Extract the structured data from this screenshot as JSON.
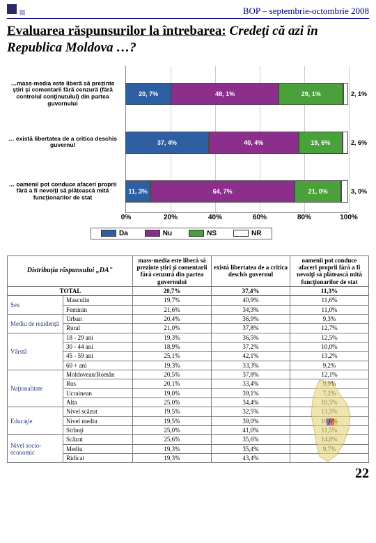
{
  "header": {
    "text": "BOP  – septembrie-octombrie  2008"
  },
  "title": {
    "lead": "Evaluarea răspunsurilor la întrebarea:",
    "question": "Credeţi că azi în Republica Moldova …?"
  },
  "chart": {
    "type": "stacked-horizontal-bar",
    "x_axis": {
      "min": 0,
      "max": 100,
      "ticks": [
        "0%",
        "20%",
        "40%",
        "60%",
        "80%",
        "100%"
      ]
    },
    "colors": {
      "da": "#2f5fa3",
      "nu": "#8c2f8c",
      "ns": "#4aa03a",
      "nr": "#ffffff",
      "border": "#4a4a4a"
    },
    "legend": [
      {
        "key": "da",
        "label": "Da"
      },
      {
        "key": "nu",
        "label": "Nu"
      },
      {
        "key": "ns",
        "label": "NS"
      },
      {
        "key": "nr",
        "label": "NR"
      }
    ],
    "rows": [
      {
        "label": "…mass-media este liberă să prezinte ştiri şi comentarii fără cenzură (fără controlul conţinutului) din partea guvernului",
        "segments": [
          {
            "key": "da",
            "value": 20.7,
            "text": "20, 7%"
          },
          {
            "key": "nu",
            "value": 48.1,
            "text": "48, 1%"
          },
          {
            "key": "ns",
            "value": 29.1,
            "text": "29, 1%"
          },
          {
            "key": "nr",
            "value": 2.1,
            "text": "2, 1%",
            "outside": true
          }
        ]
      },
      {
        "label": "… există libertatea de a critica deschis guvernul",
        "segments": [
          {
            "key": "da",
            "value": 37.4,
            "text": "37, 4%"
          },
          {
            "key": "nu",
            "value": 40.4,
            "text": "40, 4%"
          },
          {
            "key": "ns",
            "value": 19.6,
            "text": "19, 6%"
          },
          {
            "key": "nr",
            "value": 2.6,
            "text": "2, 6%",
            "outside": true
          }
        ]
      },
      {
        "label": "… oamenii pot conduce afaceri proprii fără a fi nevoiţi să plătească mită funcţionarilor de stat",
        "segments": [
          {
            "key": "da",
            "value": 11.3,
            "text": "11, 3%"
          },
          {
            "key": "nu",
            "value": 64.7,
            "text": "64, 7%"
          },
          {
            "key": "ns",
            "value": 21.0,
            "text": "21, 0%"
          },
          {
            "key": "nr",
            "value": 3.0,
            "text": "3, 0%",
            "outside": true
          }
        ]
      }
    ]
  },
  "table": {
    "dist_title": "Distribuţia răspunsului „DA\"",
    "col_headers": [
      "mass-media este liberă să prezinte ştiri şi comentarii fără cenzură din partea guvernului",
      "există libertatea de a critica deschis guvernul",
      "oamenii pot conduce afaceri proprii fără a fi nevoiţi să plătească mită funcţionarilor de stat"
    ],
    "total_label": "TOTAL",
    "total": [
      "20,7%",
      "37,4%",
      "11,3%"
    ],
    "groups": [
      {
        "cat": "Sex",
        "rows": [
          {
            "h": "Masculin",
            "v": [
              "19,7%",
              "40,9%",
              "11,6%"
            ]
          },
          {
            "h": "Feminin",
            "v": [
              "21,6%",
              "34,3%",
              "11,0%"
            ]
          }
        ]
      },
      {
        "cat": "Mediu de rezidenţă",
        "rows": [
          {
            "h": "Urban",
            "v": [
              "20,4%",
              "36,9%",
              "9,3%"
            ]
          },
          {
            "h": "Rural",
            "v": [
              "21,0%",
              "37,8%",
              "12,7%"
            ]
          }
        ]
      },
      {
        "cat": "Vârstă",
        "rows": [
          {
            "h": "18 - 29 ani",
            "v": [
              "19,3%",
              "36,5%",
              "12,5%"
            ]
          },
          {
            "h": "30 - 44 ani",
            "v": [
              "18,9%",
              "37,2%",
              "10,0%"
            ]
          },
          {
            "h": "45 - 59 ani",
            "v": [
              "25,1%",
              "42,1%",
              "13,2%"
            ]
          },
          {
            "h": "60 + ani",
            "v": [
              "19,3%",
              "33,3%",
              "9,2%"
            ]
          }
        ]
      },
      {
        "cat": "Naţionalitate",
        "rows": [
          {
            "h": "Moldovean/Român",
            "v": [
              "20,5%",
              "37,8%",
              "12,1%"
            ]
          },
          {
            "h": "Rus",
            "v": [
              "20,1%",
              "33,4%",
              "9,9%"
            ]
          },
          {
            "h": "Ucrainean",
            "v": [
              "19,0%",
              "39,1%",
              "7,2%"
            ]
          },
          {
            "h": "Alta",
            "v": [
              "25,0%",
              "34,4%",
              "10,5%"
            ]
          }
        ]
      },
      {
        "cat": "Educaţie",
        "rows": [
          {
            "h": "Nivel scăzut",
            "v": [
              "19,5%",
              "32,5%",
              "13,5%"
            ]
          },
          {
            "h": "Nivel mediu",
            "v": [
              "19,5%",
              "39,0%",
              "10,6%"
            ]
          },
          {
            "h": "Strîmţi",
            "v": [
              "25,0%",
              "41,0%",
              "11,5%"
            ]
          }
        ]
      },
      {
        "cat": "Nivel socio-economic",
        "rows": [
          {
            "h": "Scăzut",
            "v": [
              "25,6%",
              "35,6%",
              "14,8%"
            ]
          },
          {
            "h": "Mediu",
            "v": [
              "19,3%",
              "35,4%",
              "9,7%"
            ]
          },
          {
            "h": "Ridicat",
            "v": [
              "19,3%",
              "43,4%",
              ""
            ]
          }
        ]
      }
    ]
  },
  "page_number": "22"
}
